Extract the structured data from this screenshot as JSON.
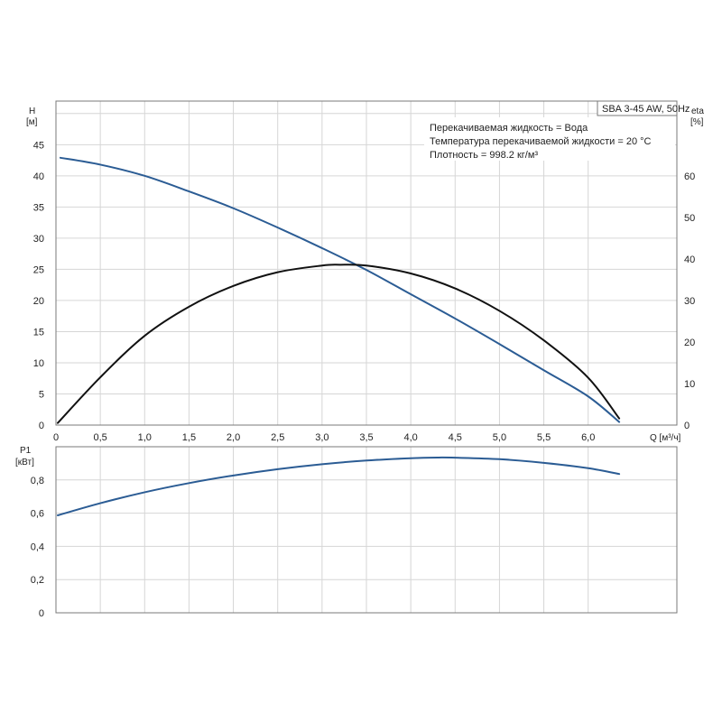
{
  "chart_data": [
    {
      "type": "line",
      "panel": "head-efficiency",
      "title": "SBA 3-45 AW, 50Hz",
      "annotations": [
        "Перекачиваемая жидкость = Вода",
        "Температура перекачиваемой жидкости = 20 °C",
        "Плотность = 998.2 кг/м³"
      ],
      "xlabel": "Q [м³/ч]",
      "ylabel_symbol": "H",
      "ylabel_unit": "[м]",
      "y2label_symbol": "eta",
      "y2label_unit": "[%]",
      "xlim": [
        0,
        7.0
      ],
      "ylim": [
        0,
        52
      ],
      "y2lim": [
        0,
        78
      ],
      "x_ticks": [
        "0",
        "0,5",
        "1,0",
        "1,5",
        "2,0",
        "2,5",
        "3,0",
        "3,5",
        "4,0",
        "4,5",
        "5,0",
        "5,5",
        "6,0"
      ],
      "y_ticks": [
        "0",
        "5",
        "10",
        "15",
        "20",
        "25",
        "30",
        "35",
        "40",
        "45"
      ],
      "y2_ticks": [
        "0",
        "10",
        "20",
        "30",
        "40",
        "50",
        "60"
      ],
      "grid": true,
      "series": [
        {
          "axis": "left",
          "color": "#2b5c94",
          "x": [
            0.05,
            0.5,
            1.0,
            1.5,
            2.0,
            2.5,
            3.0,
            3.5,
            4.0,
            4.5,
            5.0,
            5.5,
            6.0,
            6.35
          ],
          "y": [
            42.9,
            41.8,
            40.0,
            37.5,
            34.8,
            31.7,
            28.4,
            24.9,
            21.0,
            17.1,
            13.0,
            8.8,
            4.6,
            0.5
          ]
        },
        {
          "axis": "right",
          "color": "#111111",
          "x": [
            0.02,
            0.5,
            1.0,
            1.5,
            2.0,
            2.5,
            3.0,
            3.2,
            3.5,
            4.0,
            4.5,
            5.0,
            5.5,
            6.0,
            6.35
          ],
          "y": [
            0.5,
            11.5,
            21.5,
            28.5,
            33.5,
            36.8,
            38.4,
            38.6,
            38.4,
            36.5,
            32.9,
            27.5,
            20.4,
            11.4,
            1.6
          ]
        }
      ]
    },
    {
      "type": "line",
      "panel": "power",
      "ylabel_symbol": "P1",
      "ylabel_unit": "[кВт]",
      "xlim": [
        0,
        7.0
      ],
      "ylim": [
        0,
        1.0
      ],
      "y_ticks": [
        "0",
        "0,2",
        "0,4",
        "0,6",
        "0,8"
      ],
      "grid": true,
      "series": [
        {
          "color": "#2b5c94",
          "x": [
            0.02,
            0.5,
            1.0,
            1.5,
            2.0,
            2.5,
            3.0,
            3.5,
            4.0,
            4.3,
            4.5,
            5.0,
            5.5,
            6.0,
            6.35
          ],
          "y": [
            0.587,
            0.66,
            0.726,
            0.781,
            0.827,
            0.865,
            0.895,
            0.917,
            0.931,
            0.935,
            0.934,
            0.925,
            0.903,
            0.871,
            0.836
          ]
        }
      ]
    }
  ]
}
